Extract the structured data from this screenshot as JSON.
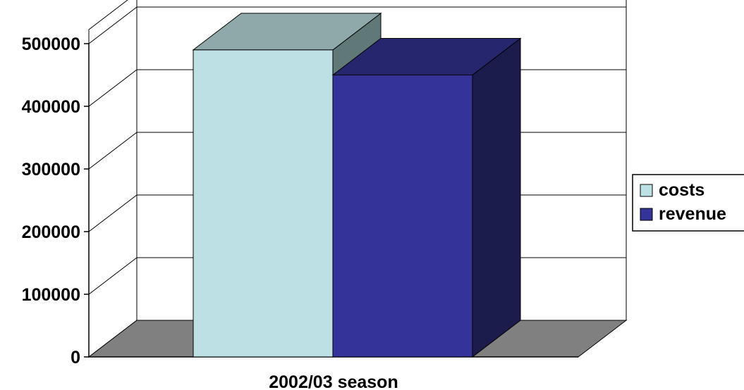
{
  "chart_data": {
    "type": "bar",
    "style": "3d-clustered-column",
    "categories": [
      "2002/03 season"
    ],
    "series": [
      {
        "name": "costs",
        "values": [
          490000
        ],
        "color": "#bde0e4",
        "top_color": "#8fa9ab",
        "side_color": "#607878"
      },
      {
        "name": "revenue",
        "values": [
          450000
        ],
        "color": "#333399",
        "top_color": "#26266e",
        "side_color": "#1b1b4c"
      }
    ],
    "xlabel": "2002/03 season",
    "ylabel": "",
    "ylim": [
      0,
      500000
    ],
    "yticks": [
      0,
      100000,
      200000,
      300000,
      400000,
      500000
    ],
    "ytick_labels": [
      "0",
      "100000",
      "200000",
      "300000",
      "400000",
      "500000"
    ],
    "grid": true,
    "legend": "right",
    "floor_color": "#808080"
  }
}
